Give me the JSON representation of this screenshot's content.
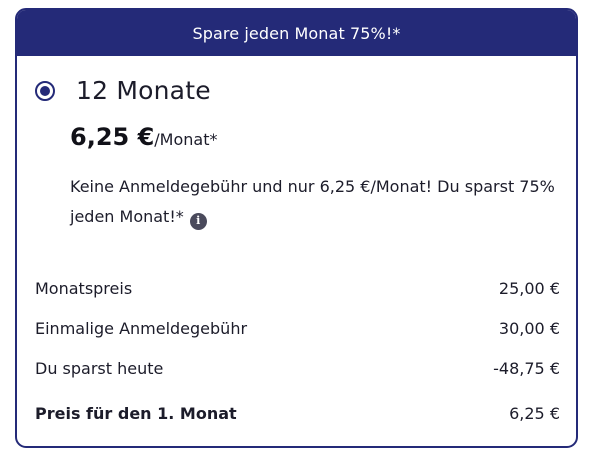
{
  "banner": {
    "text": "Spare jeden Monat 75%!*"
  },
  "plan": {
    "selected": true,
    "title": "12 Monate",
    "price_amount": "6,25 €",
    "price_unit": "/Monat*",
    "description": "Keine Anmeldegebühr und nur 6,25 €/Monat! Du sparst 75% jeden Monat!*",
    "info_icon": "info-icon"
  },
  "breakdown": {
    "rows": [
      {
        "label": "Monatspreis",
        "value": "25,00 €"
      },
      {
        "label": "Einmalige Anmeldegebühr",
        "value": "30,00 €"
      },
      {
        "label": "Du sparst heute",
        "value": "-48,75 €"
      }
    ],
    "total": {
      "label": "Preis für den 1. Monat",
      "value": "6,25 €"
    }
  },
  "colors": {
    "accent": "#242a78",
    "text": "#1c1c2a",
    "background": "#ffffff"
  }
}
